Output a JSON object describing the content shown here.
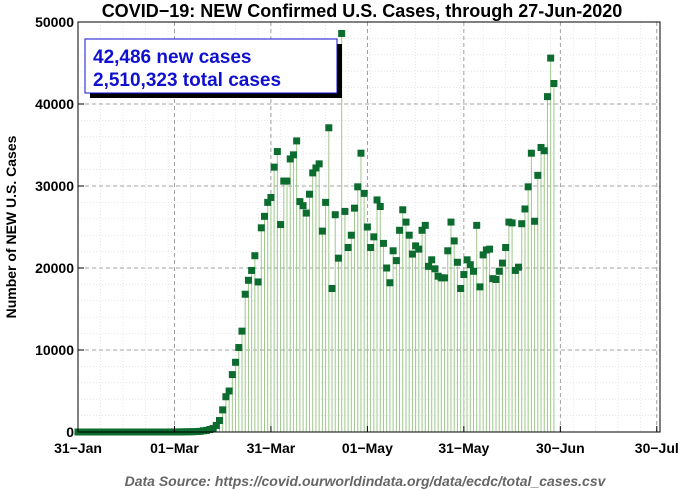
{
  "chart_data": {
    "type": "scatter",
    "title": "COVID−19: NEW Confirmed U.S. Cases, through 27-Jun-2020",
    "ylabel": "Number of NEW U.S. Cases",
    "xlabel": "",
    "source": "Data Source: https://covid.ourworldindata.org/data/ecdc/total_cases.csv",
    "annotation": [
      "42,486 new cases",
      "2,510,323 total cases"
    ],
    "x_ticks": [
      "31−Jan",
      "01−Mar",
      "31−Mar",
      "01−May",
      "31−May",
      "30−Jun",
      "30−Jul"
    ],
    "y_ticks": [
      "0",
      "10000",
      "20000",
      "30000",
      "40000",
      "50000"
    ],
    "xlim": [
      "2020-01-31",
      "2020-07-30"
    ],
    "ylim": [
      0,
      50000
    ],
    "marker": "square",
    "stems": true,
    "grid": true,
    "colors": {
      "marker": "#0c6b2e",
      "stem": "#9ec88a",
      "annotation": "#1010d0",
      "source": "#666666"
    },
    "start_date": "2020-01-31",
    "values": [
      0,
      0,
      0,
      0,
      0,
      0,
      0,
      0,
      0,
      0,
      0,
      0,
      0,
      0,
      0,
      0,
      0,
      0,
      0,
      0,
      0,
      0,
      0,
      0,
      0,
      0,
      0,
      0,
      0,
      3,
      5,
      8,
      12,
      18,
      25,
      30,
      40,
      60,
      80,
      150,
      200,
      300,
      420,
      800,
      1400,
      2700,
      4300,
      5000,
      7000,
      8500,
      10300,
      12300,
      16800,
      18500,
      19700,
      21500,
      18300,
      24900,
      26300,
      28000,
      28600,
      32300,
      34200,
      25300,
      30600,
      30600,
      33300,
      33800,
      35500,
      28100,
      27600,
      26700,
      29000,
      31600,
      32200,
      32700,
      24500,
      28000,
      37100,
      17500,
      26500,
      21200,
      48600,
      26900,
      22500,
      24000,
      27300,
      29900,
      34000,
      29100,
      25000,
      22500,
      23800,
      28300,
      27500,
      23000,
      20000,
      18200,
      22100,
      20900,
      24600,
      27100,
      25600,
      24000,
      21700,
      22700,
      22300,
      24600,
      25200,
      20200,
      21000,
      19900,
      19000,
      18800,
      18800,
      22100,
      25600,
      23300,
      20700,
      17500,
      19200,
      21000,
      20400,
      19600,
      25200,
      17700,
      21600,
      22200,
      22300,
      18700,
      18600,
      19600,
      20600,
      22500,
      25600,
      25500,
      19700,
      20100,
      25400,
      27200,
      29900,
      34000,
      25700,
      31300,
      34700,
      34300,
      40900,
      45600,
      42500
    ]
  }
}
